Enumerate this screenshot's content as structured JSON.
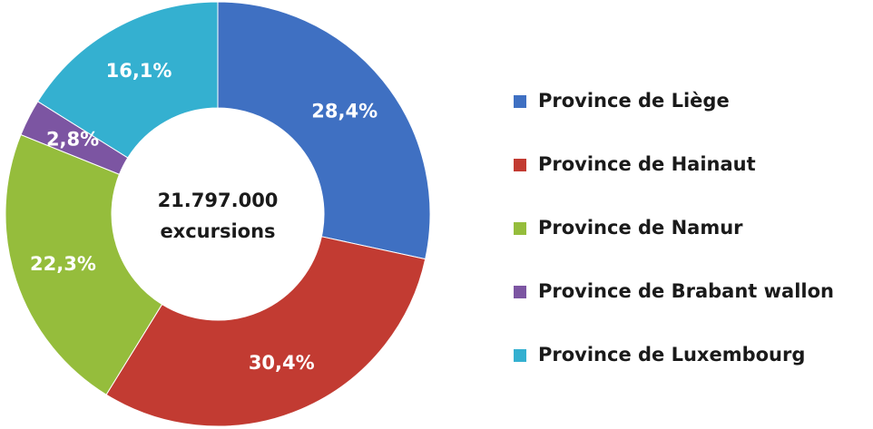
{
  "chart_data": {
    "type": "donut",
    "categories": [
      "Province de Liège",
      "Province de Hainaut",
      "Province de Namur",
      "Province de Brabant wallon",
      "Province de Luxembourg"
    ],
    "values": [
      28.4,
      30.4,
      22.3,
      2.8,
      16.1
    ],
    "value_labels": [
      "28,4%",
      "30,4%",
      "22,3%",
      "2,8%",
      "16,1%"
    ],
    "colors": [
      "#3f70c2",
      "#c23b32",
      "#95bd3c",
      "#7c55a2",
      "#34b0d0"
    ],
    "annotations": [
      "21.797.000",
      "excursions"
    ],
    "legend": "right"
  }
}
